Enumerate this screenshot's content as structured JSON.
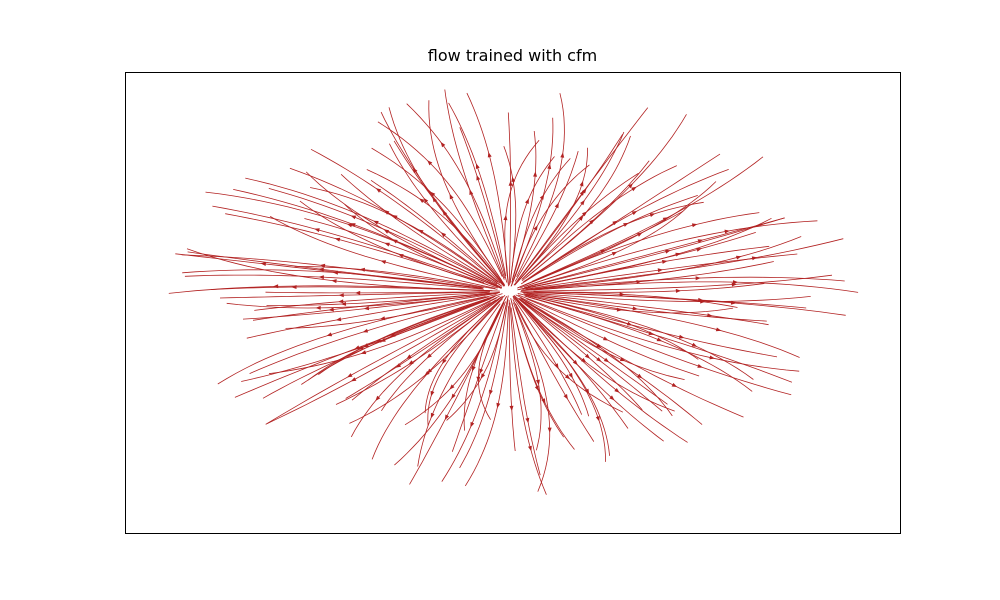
{
  "chart_data": {
    "type": "streamplot",
    "title": "flow trained with cfm",
    "xlabel": "",
    "ylabel": "",
    "xticks": [],
    "yticks": [],
    "grid": false,
    "legend": null,
    "colors": {
      "stream": "#b22222",
      "axes": "#000000",
      "background": "#ffffff"
    },
    "description_of_flow": "radial outward flow from a central source near (0.13, 0.05) in normalized axes units",
    "field": {
      "xlim": [
        -1.0,
        1.0
      ],
      "ylim": [
        -1.0,
        1.0
      ],
      "source": [
        -0.01,
        0.05
      ],
      "streamline_count": 160
    }
  }
}
